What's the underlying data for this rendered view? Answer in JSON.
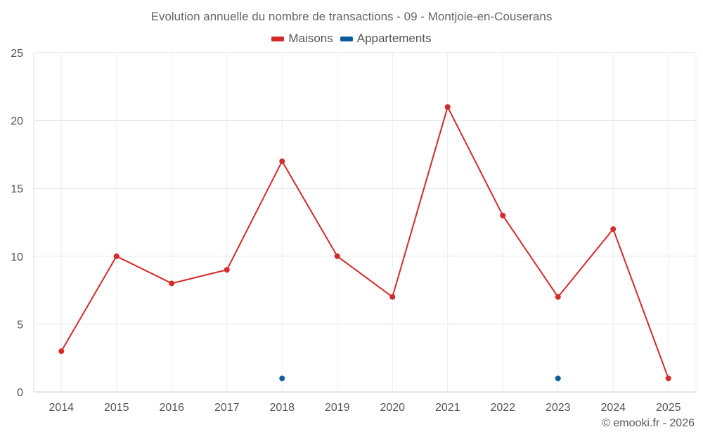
{
  "chart_data": {
    "type": "line",
    "title": "Evolution annuelle du nombre de transactions - 09 - Montjoie-en-Couserans",
    "x": [
      "2014",
      "2015",
      "2016",
      "2017",
      "2018",
      "2019",
      "2020",
      "2021",
      "2022",
      "2023",
      "2024",
      "2025"
    ],
    "series": [
      {
        "name": "Maisons",
        "color": "#d32a2a",
        "values": [
          3,
          10,
          8,
          9,
          17,
          10,
          7,
          21,
          13,
          7,
          12,
          1
        ]
      },
      {
        "name": "Appartements",
        "color": "#0b5e9a",
        "values": [
          null,
          null,
          null,
          null,
          1,
          null,
          null,
          null,
          null,
          1,
          null,
          null
        ]
      }
    ],
    "ylim": [
      0,
      25
    ],
    "yticks": [
      "0",
      "5",
      "10",
      "15",
      "20",
      "25"
    ],
    "grid": true,
    "legend_position": "top-center"
  },
  "credit": "© emooki.fr - 2026"
}
